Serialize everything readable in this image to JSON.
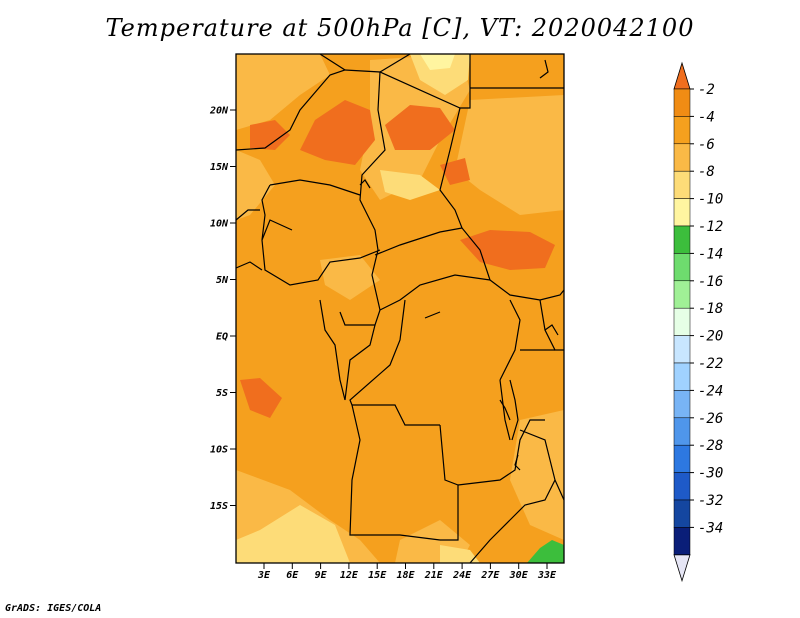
{
  "title": "Temperature at 500hPa [C], VT: 2020042100",
  "footer": "GrADS: IGES/COLA",
  "colors": {
    "orange_dark": "#f06e1e",
    "orange": "#f5a01e",
    "orange_light": "#fab946",
    "yellow": "#fddc78",
    "yellow_pale": "#fff5a0",
    "green": "#3cbe3c"
  },
  "map": {
    "lat_labels": [
      "20N",
      "15N",
      "10N",
      "5N",
      "EQ",
      "5S",
      "10S",
      "15S"
    ],
    "lon_labels": [
      "3E",
      "6E",
      "9E",
      "12E",
      "15E",
      "18E",
      "21E",
      "24E",
      "27E",
      "30E",
      "33E"
    ]
  },
  "colorbar": {
    "labels": [
      "-2",
      "-4",
      "-6",
      "-8",
      "-10",
      "-12",
      "-14",
      "-16",
      "-18",
      "-20",
      "-22",
      "-24",
      "-26",
      "-28",
      "-30",
      "-32",
      "-34"
    ],
    "colors": [
      "#f06e1e",
      "#f08c14",
      "#f5a01e",
      "#fab946",
      "#fddc78",
      "#fff5a0",
      "#3cbe3c",
      "#6edc6e",
      "#a0f096",
      "#e6ffe6",
      "#c8e6ff",
      "#a0d2ff",
      "#78b4f5",
      "#4f96eb",
      "#2d78e1",
      "#1e5ac8",
      "#1446a0",
      "#0a1e78"
    ],
    "top_arrow_color": "#f06e1e",
    "bottom_arrow_color": "#e6e6f5"
  }
}
